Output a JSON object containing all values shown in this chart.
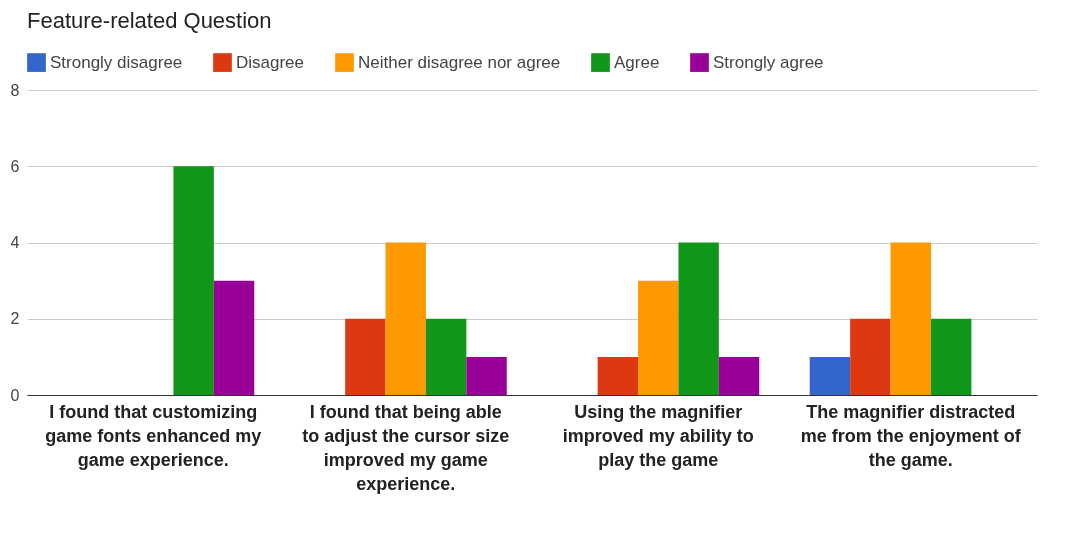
{
  "chart_data": {
    "type": "bar",
    "title": "Feature-related Question",
    "categories": [
      "I found that customizing game fonts enhanced my game experience.",
      "I found that being able to adjust the cursor size improved my game experience.",
      "Using the magnifier improved my ability to play the game",
      "The magnifier distracted me from the enjoyment of the game."
    ],
    "series": [
      {
        "name": "Strongly disagree",
        "color": "#3366cc",
        "values": [
          0,
          0,
          0,
          1
        ]
      },
      {
        "name": "Disagree",
        "color": "#dc3912",
        "values": [
          0,
          2,
          1,
          2
        ]
      },
      {
        "name": "Neither disagree nor agree",
        "color": "#ff9900",
        "values": [
          0,
          4,
          3,
          4
        ]
      },
      {
        "name": "Agree",
        "color": "#109618",
        "values": [
          6,
          2,
          4,
          2
        ]
      },
      {
        "name": "Strongly agree",
        "color": "#990099",
        "values": [
          3,
          1,
          1,
          0
        ]
      }
    ],
    "ylim": [
      0,
      8
    ],
    "yticks": [
      0,
      2,
      4,
      6,
      8
    ],
    "grid": "y",
    "legend": "top"
  }
}
